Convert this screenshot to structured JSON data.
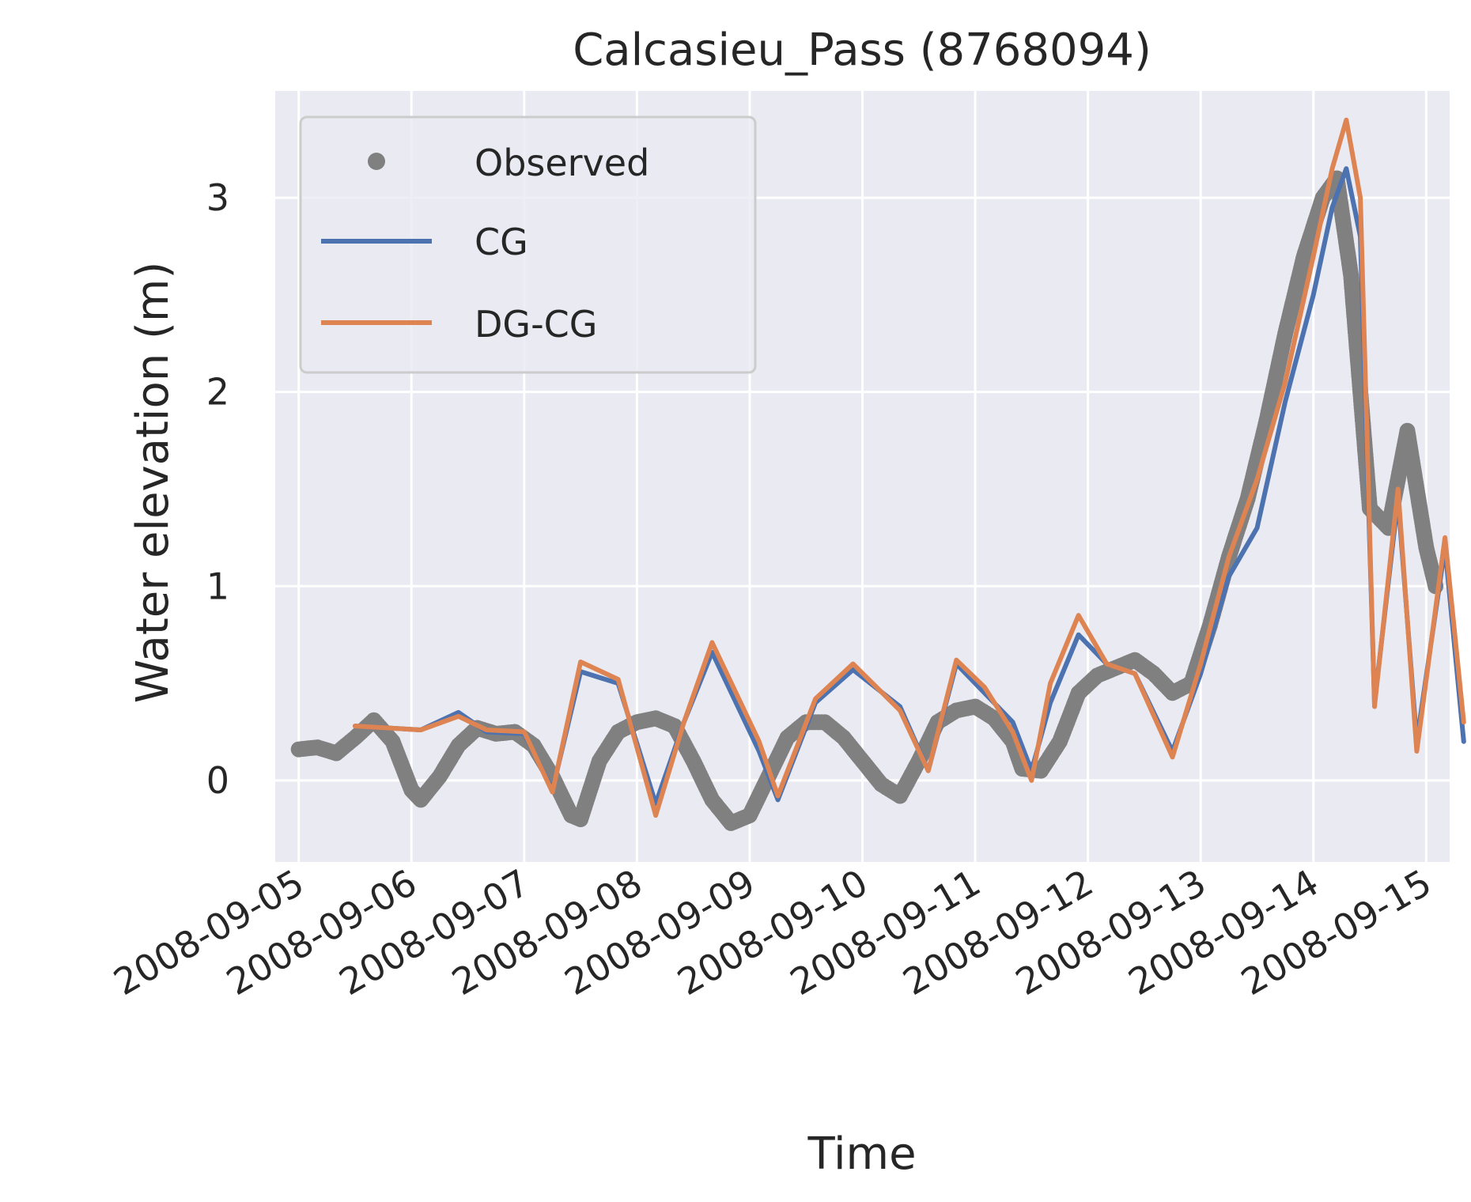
{
  "chart_data": {
    "type": "line",
    "title": "Calcasieu_Pass (8768094)",
    "xlabel": "Time",
    "ylabel": "Water elevation (m)",
    "x_axis_type": "date",
    "xlim": [
      "2008-09-04T19:00",
      "2008-09-15T05:00"
    ],
    "ylim": [
      -0.42,
      3.55
    ],
    "x_ticks": [
      "2008-09-05",
      "2008-09-06",
      "2008-09-07",
      "2008-09-08",
      "2008-09-09",
      "2008-09-10",
      "2008-09-11",
      "2008-09-12",
      "2008-09-13",
      "2008-09-14",
      "2008-09-15"
    ],
    "y_ticks": [
      0,
      1,
      2,
      3
    ],
    "grid": true,
    "background": "#eaeaf2",
    "legend_position": "top-left",
    "series": [
      {
        "name": "Observed",
        "style": "markers",
        "color": "#808080",
        "points": [
          [
            "2008-09-05T00:00",
            0.16
          ],
          [
            "2008-09-05T04:00",
            0.17
          ],
          [
            "2008-09-05T08:00",
            0.14
          ],
          [
            "2008-09-05T12:00",
            0.22
          ],
          [
            "2008-09-05T16:00",
            0.31
          ],
          [
            "2008-09-05T20:00",
            0.2
          ],
          [
            "2008-09-06T00:00",
            -0.05
          ],
          [
            "2008-09-06T02:00",
            -0.1
          ],
          [
            "2008-09-06T06:00",
            0.02
          ],
          [
            "2008-09-06T10:00",
            0.18
          ],
          [
            "2008-09-06T14:00",
            0.27
          ],
          [
            "2008-09-06T18:00",
            0.24
          ],
          [
            "2008-09-06T22:00",
            0.25
          ],
          [
            "2008-09-07T02:00",
            0.18
          ],
          [
            "2008-09-07T06:00",
            0.02
          ],
          [
            "2008-09-07T10:00",
            -0.18
          ],
          [
            "2008-09-07T12:00",
            -0.2
          ],
          [
            "2008-09-07T16:00",
            0.1
          ],
          [
            "2008-09-07T20:00",
            0.25
          ],
          [
            "2008-09-08T00:00",
            0.3
          ],
          [
            "2008-09-08T04:00",
            0.32
          ],
          [
            "2008-09-08T08:00",
            0.28
          ],
          [
            "2008-09-08T12:00",
            0.1
          ],
          [
            "2008-09-08T16:00",
            -0.1
          ],
          [
            "2008-09-08T20:00",
            -0.22
          ],
          [
            "2008-09-09T00:00",
            -0.18
          ],
          [
            "2008-09-09T04:00",
            0.02
          ],
          [
            "2008-09-09T08:00",
            0.22
          ],
          [
            "2008-09-09T12:00",
            0.3
          ],
          [
            "2008-09-09T16:00",
            0.3
          ],
          [
            "2008-09-09T20:00",
            0.22
          ],
          [
            "2008-09-10T00:00",
            0.1
          ],
          [
            "2008-09-10T04:00",
            -0.02
          ],
          [
            "2008-09-10T08:00",
            -0.08
          ],
          [
            "2008-09-10T12:00",
            0.1
          ],
          [
            "2008-09-10T16:00",
            0.3
          ],
          [
            "2008-09-10T20:00",
            0.36
          ],
          [
            "2008-09-11T00:00",
            0.38
          ],
          [
            "2008-09-11T04:00",
            0.32
          ],
          [
            "2008-09-11T08:00",
            0.2
          ],
          [
            "2008-09-11T10:00",
            0.06
          ],
          [
            "2008-09-11T14:00",
            0.05
          ],
          [
            "2008-09-11T18:00",
            0.2
          ],
          [
            "2008-09-11T22:00",
            0.45
          ],
          [
            "2008-09-12T02:00",
            0.54
          ],
          [
            "2008-09-12T06:00",
            0.58
          ],
          [
            "2008-09-12T10:00",
            0.62
          ],
          [
            "2008-09-12T14:00",
            0.55
          ],
          [
            "2008-09-12T18:00",
            0.45
          ],
          [
            "2008-09-12T22:00",
            0.5
          ],
          [
            "2008-09-13T02:00",
            0.8
          ],
          [
            "2008-09-13T06:00",
            1.15
          ],
          [
            "2008-09-13T10:00",
            1.45
          ],
          [
            "2008-09-13T14:00",
            1.85
          ],
          [
            "2008-09-13T18:00",
            2.3
          ],
          [
            "2008-09-13T22:00",
            2.7
          ],
          [
            "2008-09-14T02:00",
            3.0
          ],
          [
            "2008-09-14T05:00",
            3.1
          ],
          [
            "2008-09-14T08:00",
            2.6
          ],
          [
            "2008-09-14T12:00",
            1.4
          ],
          [
            "2008-09-14T16:00",
            1.3
          ],
          [
            "2008-09-14T20:00",
            1.8
          ],
          [
            "2008-09-15T00:00",
            1.2
          ],
          [
            "2008-09-15T02:00",
            1.0
          ]
        ]
      },
      {
        "name": "CG",
        "style": "line",
        "color": "#4c72b0",
        "points": [
          [
            "2008-09-05T12:00",
            0.28
          ],
          [
            "2008-09-06T02:00",
            0.26
          ],
          [
            "2008-09-06T10:00",
            0.35
          ],
          [
            "2008-09-06T16:00",
            0.25
          ],
          [
            "2008-09-07T00:00",
            0.24
          ],
          [
            "2008-09-07T06:00",
            -0.05
          ],
          [
            "2008-09-07T12:00",
            0.56
          ],
          [
            "2008-09-07T20:00",
            0.5
          ],
          [
            "2008-09-08T04:00",
            -0.12
          ],
          [
            "2008-09-08T10:00",
            0.3
          ],
          [
            "2008-09-08T16:00",
            0.66
          ],
          [
            "2008-09-09T02:00",
            0.15
          ],
          [
            "2008-09-09T06:00",
            -0.1
          ],
          [
            "2008-09-09T14:00",
            0.4
          ],
          [
            "2008-09-09T22:00",
            0.57
          ],
          [
            "2008-09-10T08:00",
            0.38
          ],
          [
            "2008-09-10T14:00",
            0.05
          ],
          [
            "2008-09-10T20:00",
            0.6
          ],
          [
            "2008-09-11T02:00",
            0.45
          ],
          [
            "2008-09-11T08:00",
            0.3
          ],
          [
            "2008-09-11T12:00",
            0.05
          ],
          [
            "2008-09-11T16:00",
            0.4
          ],
          [
            "2008-09-11T22:00",
            0.75
          ],
          [
            "2008-09-12T04:00",
            0.6
          ],
          [
            "2008-09-12T10:00",
            0.55
          ],
          [
            "2008-09-12T18:00",
            0.15
          ],
          [
            "2008-09-13T00:00",
            0.55
          ],
          [
            "2008-09-13T06:00",
            1.05
          ],
          [
            "2008-09-13T12:00",
            1.3
          ],
          [
            "2008-09-13T18:00",
            1.95
          ],
          [
            "2008-09-14T00:00",
            2.5
          ],
          [
            "2008-09-14T04:00",
            2.95
          ],
          [
            "2008-09-14T07:00",
            3.15
          ],
          [
            "2008-09-14T10:00",
            2.8
          ],
          [
            "2008-09-14T13:00",
            0.4
          ],
          [
            "2008-09-14T18:00",
            1.45
          ],
          [
            "2008-09-14T22:00",
            0.2
          ],
          [
            "2008-09-15T04:00",
            1.2
          ],
          [
            "2008-09-15T08:00",
            0.2
          ]
        ]
      },
      {
        "name": "DG-CG",
        "style": "line",
        "color": "#dd8452",
        "points": [
          [
            "2008-09-05T12:00",
            0.28
          ],
          [
            "2008-09-06T02:00",
            0.26
          ],
          [
            "2008-09-06T10:00",
            0.33
          ],
          [
            "2008-09-06T16:00",
            0.26
          ],
          [
            "2008-09-07T00:00",
            0.25
          ],
          [
            "2008-09-07T06:00",
            -0.06
          ],
          [
            "2008-09-07T12:00",
            0.61
          ],
          [
            "2008-09-07T20:00",
            0.52
          ],
          [
            "2008-09-08T04:00",
            -0.18
          ],
          [
            "2008-09-08T10:00",
            0.3
          ],
          [
            "2008-09-08T16:00",
            0.71
          ],
          [
            "2008-09-09T02:00",
            0.2
          ],
          [
            "2008-09-09T06:00",
            -0.08
          ],
          [
            "2008-09-09T14:00",
            0.42
          ],
          [
            "2008-09-09T22:00",
            0.6
          ],
          [
            "2008-09-10T08:00",
            0.36
          ],
          [
            "2008-09-10T14:00",
            0.05
          ],
          [
            "2008-09-10T20:00",
            0.62
          ],
          [
            "2008-09-11T02:00",
            0.48
          ],
          [
            "2008-09-11T08:00",
            0.25
          ],
          [
            "2008-09-11T12:00",
            0.0
          ],
          [
            "2008-09-11T16:00",
            0.5
          ],
          [
            "2008-09-11T22:00",
            0.85
          ],
          [
            "2008-09-12T04:00",
            0.6
          ],
          [
            "2008-09-12T10:00",
            0.55
          ],
          [
            "2008-09-12T18:00",
            0.12
          ],
          [
            "2008-09-13T00:00",
            0.6
          ],
          [
            "2008-09-13T06:00",
            1.15
          ],
          [
            "2008-09-13T12:00",
            1.55
          ],
          [
            "2008-09-13T18:00",
            2.05
          ],
          [
            "2008-09-14T00:00",
            2.7
          ],
          [
            "2008-09-14T04:00",
            3.15
          ],
          [
            "2008-09-14T07:00",
            3.4
          ],
          [
            "2008-09-14T10:00",
            3.0
          ],
          [
            "2008-09-14T13:00",
            0.38
          ],
          [
            "2008-09-14T18:00",
            1.5
          ],
          [
            "2008-09-14T22:00",
            0.15
          ],
          [
            "2008-09-15T04:00",
            1.25
          ],
          [
            "2008-09-15T08:00",
            0.3
          ]
        ]
      }
    ]
  }
}
